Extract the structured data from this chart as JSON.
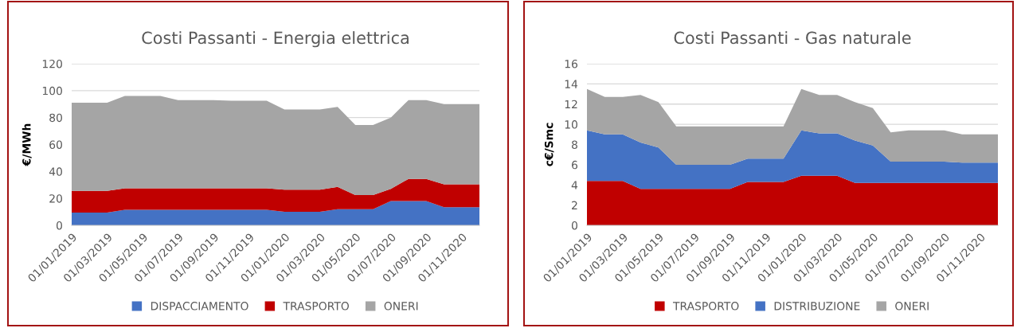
{
  "chart_data": [
    {
      "type": "area",
      "title": "Costi Passanti - Energia elettrica",
      "ylabel": "€/MWh",
      "stacked": true,
      "grid": "y",
      "legend": "bottom",
      "categories": [
        "01/01/2019",
        null,
        "01/03/2019",
        null,
        "01/05/2019",
        null,
        "01/07/2019",
        null,
        "01/09/2019",
        null,
        "01/11/2019",
        null,
        "01/01/2020",
        null,
        "01/03/2020",
        null,
        "01/05/2020",
        null,
        "01/07/2020",
        null,
        "01/09/2020",
        null,
        "01/11/2020",
        null
      ],
      "ylim": [
        0,
        120
      ],
      "yticks": [
        0,
        20,
        40,
        60,
        80,
        100,
        120
      ],
      "series": [
        {
          "name": "DISPACCIAMENTO",
          "color": "#4472c4",
          "values": [
            9.5,
            9.5,
            9.5,
            11.5,
            11.5,
            11.5,
            11.5,
            11.5,
            11.5,
            11.5,
            11.5,
            11.5,
            10,
            10,
            10,
            12,
            12,
            12,
            18,
            18,
            18,
            13.5,
            13.5,
            13.5
          ]
        },
        {
          "name": "TRASPORTO",
          "color": "#c00000",
          "values": [
            16,
            16,
            16,
            16,
            16,
            16,
            16,
            16,
            16,
            16,
            16,
            16,
            16.5,
            16.5,
            16.5,
            16.5,
            10.5,
            10.5,
            9,
            16.5,
            16.5,
            17,
            17,
            17
          ]
        },
        {
          "name": "ONERI",
          "color": "#a5a5a5",
          "values": [
            65.5,
            65.5,
            65.5,
            68.5,
            68.5,
            68.5,
            65.5,
            65.5,
            65.5,
            65,
            65,
            65,
            59.5,
            59.5,
            59.5,
            59.5,
            52,
            52,
            53,
            58.5,
            58.5,
            59.5,
            59.5,
            59.5
          ]
        }
      ]
    },
    {
      "type": "area",
      "title": "Costi Passanti - Gas naturale",
      "ylabel": "c€/Smc",
      "stacked": true,
      "grid": "y",
      "legend": "bottom",
      "categories": [
        "01/01/2019",
        null,
        "01/03/2019",
        null,
        "01/05/2019",
        null,
        "01/07/2019",
        null,
        "01/09/2019",
        null,
        "01/11/2019",
        null,
        "01/01/2020",
        null,
        "01/03/2020",
        null,
        "01/05/2020",
        null,
        "01/07/2020",
        null,
        "01/09/2020",
        null,
        "01/11/2020",
        null
      ],
      "ylim": [
        0,
        16
      ],
      "yticks": [
        0,
        2,
        4,
        6,
        8,
        10,
        12,
        14,
        16
      ],
      "series": [
        {
          "name": "TRASPORTO",
          "color": "#c00000",
          "values": [
            4.4,
            4.4,
            4.4,
            3.6,
            3.6,
            3.6,
            3.6,
            3.6,
            3.6,
            4.3,
            4.3,
            4.3,
            4.9,
            4.9,
            4.9,
            4.2,
            4.2,
            4.2,
            4.2,
            4.2,
            4.2,
            4.2,
            4.2,
            4.2
          ]
        },
        {
          "name": "DISTRIBUZIONE",
          "color": "#4472c4",
          "values": [
            5.0,
            4.6,
            4.6,
            4.6,
            4.1,
            2.4,
            2.4,
            2.4,
            2.4,
            2.3,
            2.3,
            2.3,
            4.5,
            4.2,
            4.2,
            4.2,
            3.7,
            2.1,
            2.1,
            2.1,
            2.1,
            2.0,
            2.0,
            2.0
          ]
        },
        {
          "name": "ONERI",
          "color": "#a5a5a5",
          "values": [
            4.1,
            3.7,
            3.7,
            4.7,
            4.5,
            3.8,
            3.8,
            3.8,
            3.8,
            3.2,
            3.2,
            3.2,
            4.1,
            3.8,
            3.8,
            3.8,
            3.7,
            2.9,
            3.1,
            3.1,
            3.1,
            2.8,
            2.8,
            2.8
          ]
        }
      ]
    }
  ]
}
